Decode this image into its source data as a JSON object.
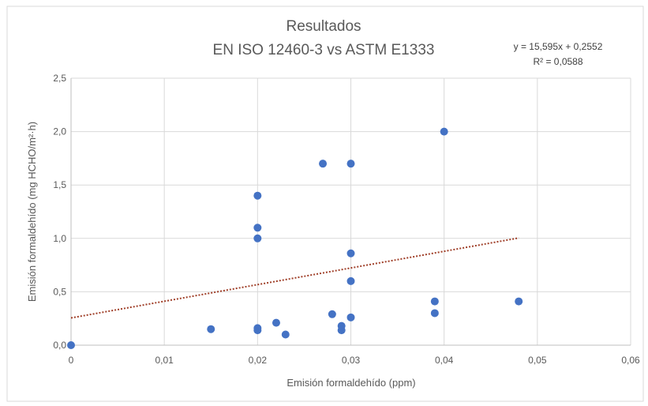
{
  "chart_data": {
    "type": "scatter",
    "title": "Resultados",
    "subtitle": "EN ISO 12460-3 vs ASTM E1333",
    "xlabel": "Emisión formaldehído (ppm)",
    "ylabel": "Emisión formaldehído (mg HCHO/m²·h)",
    "xlim": [
      0,
      0.06
    ],
    "ylim": [
      0,
      2.5
    ],
    "x_ticks": [
      0,
      0.01,
      0.02,
      0.03,
      0.04,
      0.05,
      0.06
    ],
    "y_ticks": [
      0,
      0.5,
      1.0,
      1.5,
      2.0,
      2.5
    ],
    "x_tick_labels": [
      "0",
      "0,01",
      "0,02",
      "0,03",
      "0,04",
      "0,05",
      "0,06"
    ],
    "y_tick_labels": [
      "0,0",
      "0,5",
      "1,0",
      "1,5",
      "2,0",
      "2,5"
    ],
    "grid": true,
    "series": [
      {
        "color": "#4472c4",
        "x": [
          0,
          0.015,
          0.02,
          0.02,
          0.02,
          0.02,
          0.02,
          0.022,
          0.023,
          0.027,
          0.028,
          0.029,
          0.029,
          0.03,
          0.03,
          0.03,
          0.03,
          0.039,
          0.039,
          0.04,
          0.048
        ],
        "y": [
          0,
          0.15,
          1.4,
          1.1,
          1.0,
          0.16,
          0.14,
          0.21,
          0.1,
          1.7,
          0.29,
          0.18,
          0.14,
          1.7,
          0.86,
          0.6,
          0.26,
          0.41,
          0.3,
          2.0,
          0.41
        ]
      }
    ],
    "trendline": {
      "type": "linear",
      "color": "#a0402a",
      "style": "dotted",
      "slope": 15.595,
      "intercept": 0.2552,
      "x_range": [
        0,
        0.048
      ],
      "equation_label": "y = 15,595x + 0,2552",
      "r2_label": "R² = 0,0588"
    }
  }
}
